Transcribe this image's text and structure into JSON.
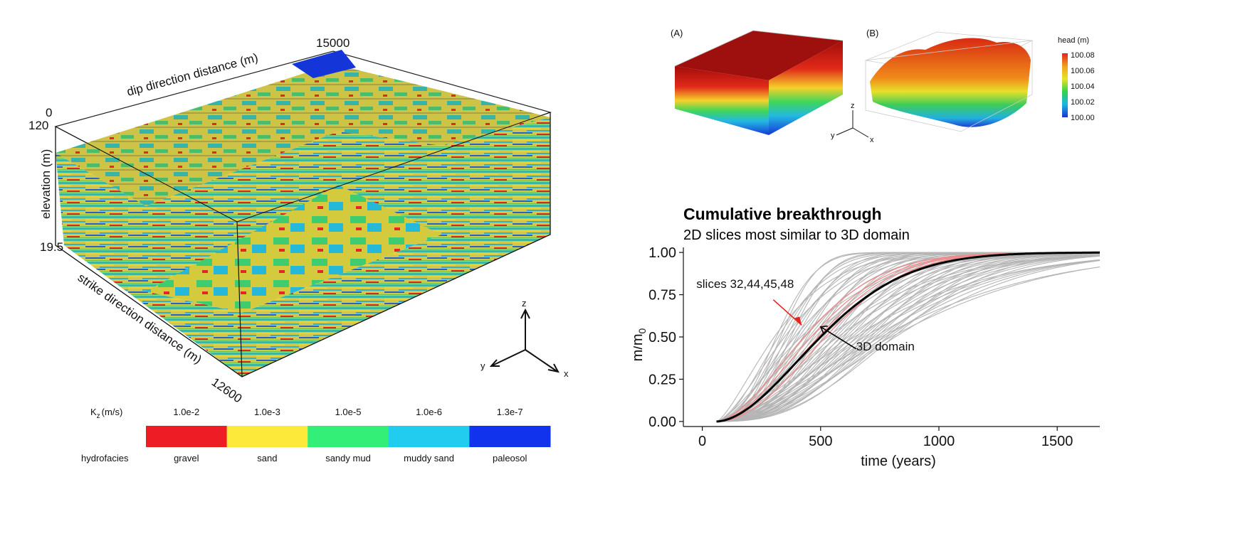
{
  "block3d": {
    "label_dip": "dip direction distance (m)",
    "label_strike": "strike direction distance (m)",
    "label_elevation": "elevation (m)",
    "tick_dip_max": "15000",
    "tick_origin": "0",
    "tick_elev_top": "120",
    "tick_elev_bottom": "19.5",
    "tick_strike_max": "12600"
  },
  "axes_triad": {
    "z": "z",
    "y": "y",
    "x": "x"
  },
  "legend": {
    "kz_label": "K",
    "kz_sub": "z",
    "kz_unit": "(m/s)",
    "hydrofacies_label": "hydrofacies",
    "items": [
      {
        "kz": "1.0e-2",
        "name": "gravel",
        "color": "#ee1c25"
      },
      {
        "kz": "1.0e-3",
        "name": "sand",
        "color": "#fde93a"
      },
      {
        "kz": "1.0e-5",
        "name": "sandy mud",
        "color": "#33ee77"
      },
      {
        "kz": "1.0e-6",
        "name": "muddy sand",
        "color": "#22ccee"
      },
      {
        "kz": "1.3e-7",
        "name": "paleosol",
        "color": "#1133ee"
      }
    ]
  },
  "head_panels": {
    "label_a": "(A)",
    "label_b": "(B)",
    "colorbar_title": "head (m)",
    "colorbar_ticks": [
      "100.08",
      "100.06",
      "100.04",
      "100.02",
      "100.00"
    ],
    "triad": {
      "z": "z",
      "y": "y",
      "x": "x"
    }
  },
  "chart_data": {
    "type": "line",
    "title": "Cumulative breakthrough",
    "subtitle": "2D slices most similar to 3D domain",
    "xlabel": "time (years)",
    "ylabel_base": "m/m",
    "ylabel_sub": "0",
    "xlim": [
      -80,
      1680
    ],
    "ylim": [
      -0.03,
      1.03
    ],
    "xticks": [
      0,
      500,
      1000,
      1500
    ],
    "yticks": [
      0.0,
      0.25,
      0.5,
      0.75,
      1.0
    ],
    "ytick_labels": [
      "0.00",
      "0.25",
      "0.50",
      "0.75",
      "1.00"
    ],
    "domain_curve": {
      "name": "3D domain",
      "t0": 60,
      "t50": 500,
      "t90": 910,
      "shape": 1.8
    },
    "slice_curves": [
      {
        "name": "slices 32,44,45,48",
        "t50": 430
      },
      {
        "name": "slices 32,44,45,48",
        "t50": 460
      },
      {
        "name": "slices 32,44,45,48",
        "t50": 490
      },
      {
        "name": "slices 32,44,45,48",
        "t50": 520
      }
    ],
    "gray_curve_t50_range": [
      300,
      820
    ],
    "gray_curve_count": 60,
    "annotations": [
      {
        "text": "slices 32,44,45,48",
        "x": 420,
        "y": 0.57,
        "color": "#e8221b"
      },
      {
        "text": "3D domain",
        "x": 500,
        "y": 0.56,
        "color": "#000000"
      }
    ]
  }
}
